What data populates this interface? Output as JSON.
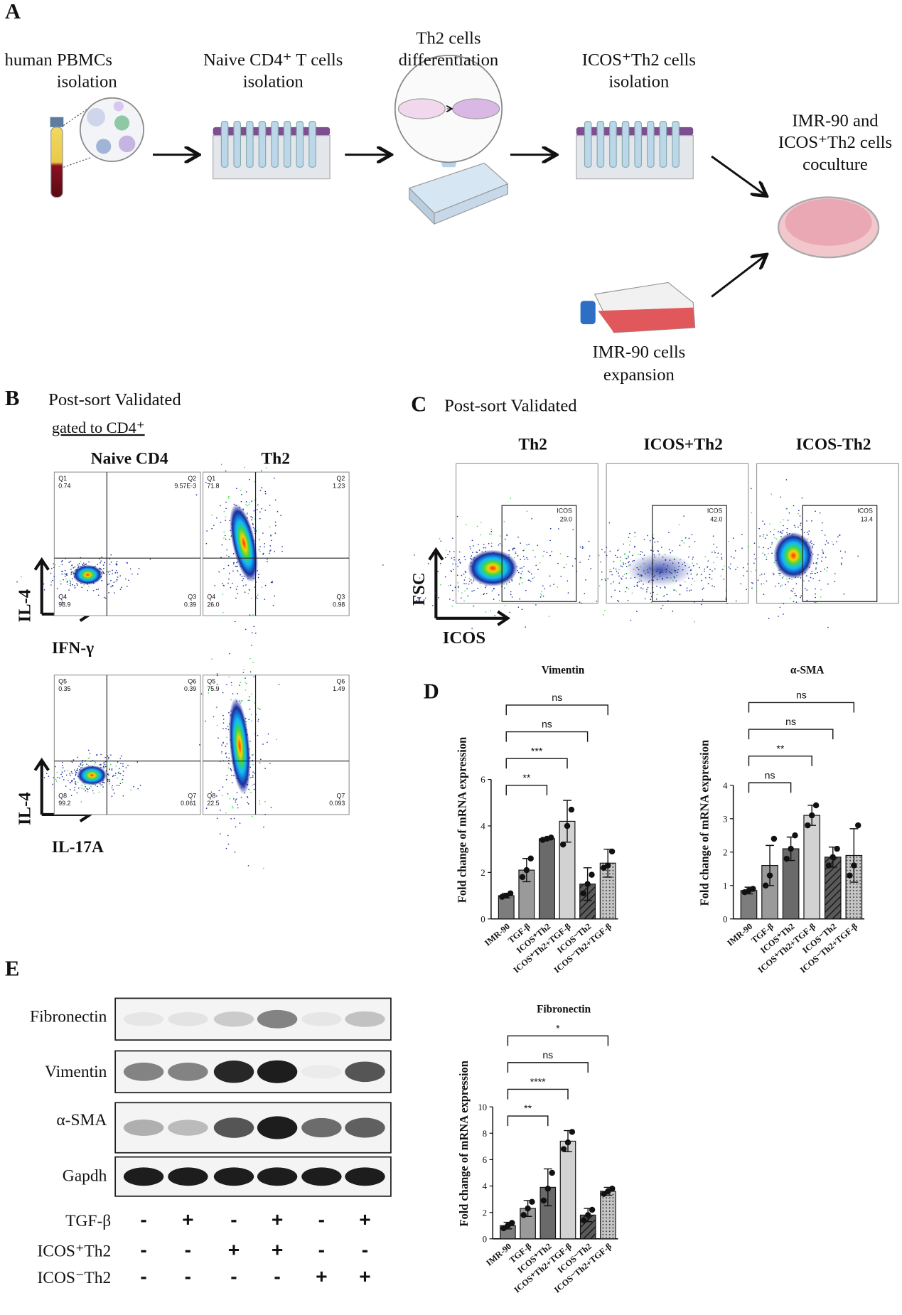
{
  "panel_a": {
    "label": "A",
    "steps": [
      {
        "lines": [
          "human PBMCs",
          "isolation"
        ]
      },
      {
        "lines": [
          "Naive CD4⁺ T cells",
          "isolation"
        ]
      },
      {
        "lines": [
          "Th2 cells",
          "differentiation"
        ]
      },
      {
        "lines": [
          "ICOS⁺Th2 cells",
          "isolation"
        ]
      },
      {
        "lines": [
          "IMR-90 and",
          "ICOS⁺Th2 cells",
          "coculture"
        ]
      },
      {
        "lines": [
          "IMR-90 cells",
          "expansion"
        ]
      }
    ]
  },
  "panel_b": {
    "label": "B",
    "title": "Post-sort Validated",
    "subtitle": "gated to CD4⁺",
    "columns": [
      "Naive CD4",
      "Th2"
    ],
    "rows": [
      {
        "y_label": "IL-4",
        "x_label": "IFN-γ",
        "plots": [
          {
            "quadrants": [
              {
                "name": "Q1",
                "value": "0.74"
              },
              {
                "name": "Q2",
                "value": "9.57E-3"
              },
              {
                "name": "Q4",
                "value": "98.9"
              },
              {
                "name": "Q3",
                "value": "0.39"
              }
            ]
          },
          {
            "quadrants": [
              {
                "name": "Q1",
                "value": "71.8"
              },
              {
                "name": "Q2",
                "value": "1.23"
              },
              {
                "name": "Q4",
                "value": "26.0"
              },
              {
                "name": "Q3",
                "value": "0.98"
              }
            ]
          }
        ]
      },
      {
        "y_label": "IL-4",
        "x_label": "IL-17A",
        "plots": [
          {
            "quadrants": [
              {
                "name": "Q5",
                "value": "0.35"
              },
              {
                "name": "Q6",
                "value": "0.39"
              },
              {
                "name": "Q8",
                "value": "99.2"
              },
              {
                "name": "Q7",
                "value": "0.061"
              }
            ]
          },
          {
            "quadrants": [
              {
                "name": "Q5",
                "value": "75.9"
              },
              {
                "name": "Q6",
                "value": "1.49"
              },
              {
                "name": "Q8",
                "value": "22.5"
              },
              {
                "name": "Q7",
                "value": "0.093"
              }
            ]
          }
        ]
      }
    ]
  },
  "panel_c": {
    "label": "C",
    "title": "Post-sort Validated",
    "y_label": "FSC",
    "x_label": "ICOS",
    "plots": [
      {
        "title": "Th2",
        "gate": "ICOS",
        "value": "29.0"
      },
      {
        "title": "ICOS+Th2",
        "gate": "ICOS",
        "value": "42.0"
      },
      {
        "title": "ICOS-Th2",
        "gate": "ICOS",
        "value": "13.4"
      }
    ]
  },
  "panel_d": {
    "label": "D"
  },
  "chart_data": [
    {
      "type": "bar",
      "title": "Vimentin",
      "y_label": "Fold change of mRNA expression",
      "categories": [
        "IMR-90",
        "TGF-β",
        "ICOS⁺Th2",
        "ICOS⁺Th2+TGF-β",
        "ICOS⁻Th2",
        "ICOS⁻Th2+TGF-β"
      ],
      "values": [
        1.0,
        2.1,
        3.45,
        4.2,
        1.5,
        2.4
      ],
      "errors": [
        0.1,
        0.5,
        0.05,
        0.9,
        0.7,
        0.6
      ],
      "points": [
        [
          0.95,
          1.0,
          1.1
        ],
        [
          1.8,
          2.1,
          2.6
        ],
        [
          3.4,
          3.45,
          3.5
        ],
        [
          3.2,
          4.0,
          4.7
        ],
        [
          1.1,
          1.5,
          1.9
        ],
        [
          2.2,
          2.3,
          2.9
        ]
      ],
      "colors": [
        "#7d7d7d",
        "#9a9a9a",
        "#6a6a6a",
        "#d2d2d2",
        "#5a5a5a",
        "#c4c4c4"
      ],
      "patterns": [
        "solid",
        "solid",
        "solid",
        "solid",
        "hatch",
        "dots"
      ],
      "ylim": [
        0,
        6
      ],
      "yticks": [
        0,
        2,
        4,
        6
      ],
      "comparisons": [
        {
          "between": [
            0,
            2
          ],
          "label": "**"
        },
        {
          "between": [
            0,
            3
          ],
          "label": "***"
        },
        {
          "between": [
            0,
            4
          ],
          "label": "ns"
        },
        {
          "between": [
            0,
            5
          ],
          "label": "ns"
        }
      ]
    },
    {
      "type": "bar",
      "title": "α-SMA",
      "y_label": "Fold change of mRNA expression",
      "categories": [
        "IMR-90",
        "TGF-β",
        "ICOS⁺Th2",
        "ICOS⁺Th2+TGF-β",
        "ICOS⁻Th2",
        "ICOS⁻Th2+TGF-β"
      ],
      "values": [
        0.85,
        1.6,
        2.1,
        3.1,
        1.85,
        1.9
      ],
      "errors": [
        0.1,
        0.6,
        0.35,
        0.3,
        0.3,
        0.8
      ],
      "points": [
        [
          0.8,
          0.85,
          0.9
        ],
        [
          1.0,
          1.3,
          2.4
        ],
        [
          1.8,
          2.1,
          2.5
        ],
        [
          2.8,
          3.1,
          3.4
        ],
        [
          1.6,
          1.85,
          2.1
        ],
        [
          1.3,
          1.6,
          2.8
        ]
      ],
      "colors": [
        "#7d7d7d",
        "#9a9a9a",
        "#6a6a6a",
        "#d2d2d2",
        "#5a5a5a",
        "#c4c4c4"
      ],
      "patterns": [
        "solid",
        "solid",
        "solid",
        "solid",
        "hatch",
        "dots"
      ],
      "ylim": [
        0,
        4
      ],
      "yticks": [
        0,
        1,
        2,
        3,
        4
      ],
      "comparisons": [
        {
          "between": [
            0,
            2
          ],
          "label": "ns"
        },
        {
          "between": [
            0,
            3
          ],
          "label": "**"
        },
        {
          "between": [
            0,
            4
          ],
          "label": "ns"
        },
        {
          "between": [
            0,
            5
          ],
          "label": "ns"
        }
      ]
    },
    {
      "type": "bar",
      "title": "Fibronectin",
      "y_label": "Fold change of mRNA expression",
      "categories": [
        "IMR-90",
        "TGF-β",
        "ICOS⁺Th2",
        "ICOS⁺Th2+TGF-β",
        "ICOS⁻Th2",
        "ICOS⁻Th2+TGF-β"
      ],
      "values": [
        1.0,
        2.3,
        3.9,
        7.4,
        1.8,
        3.6
      ],
      "errors": [
        0.25,
        0.6,
        1.4,
        0.8,
        0.5,
        0.3
      ],
      "points": [
        [
          0.8,
          1.0,
          1.2
        ],
        [
          1.8,
          2.3,
          2.8
        ],
        [
          2.9,
          3.8,
          5.0
        ],
        [
          6.8,
          7.3,
          8.1
        ],
        [
          1.4,
          1.8,
          2.2
        ],
        [
          3.4,
          3.6,
          3.8
        ]
      ],
      "colors": [
        "#7d7d7d",
        "#9a9a9a",
        "#6a6a6a",
        "#d2d2d2",
        "#5a5a5a",
        "#c4c4c4"
      ],
      "patterns": [
        "solid",
        "solid",
        "solid",
        "solid",
        "hatch",
        "dots"
      ],
      "ylim": [
        0,
        10
      ],
      "yticks": [
        0,
        2,
        4,
        6,
        8,
        10
      ],
      "comparisons": [
        {
          "between": [
            0,
            2
          ],
          "label": "**"
        },
        {
          "between": [
            0,
            3
          ],
          "label": "****"
        },
        {
          "between": [
            0,
            4
          ],
          "label": "ns"
        },
        {
          "between": [
            0,
            5
          ],
          "label": "*"
        }
      ]
    }
  ],
  "panel_e": {
    "label": "E",
    "proteins": [
      "Fibronectin",
      "Vimentin",
      "α-SMA",
      "Gapdh"
    ],
    "treatments": [
      {
        "name": "TGF-β",
        "signs": [
          "-",
          "+",
          "-",
          "+",
          "-",
          "+"
        ]
      },
      {
        "name": "ICOS⁺Th2",
        "signs": [
          "-",
          "-",
          "+",
          "+",
          "-",
          "-"
        ]
      },
      {
        "name": "ICOS⁻Th2",
        "signs": [
          "-",
          "-",
          "-",
          "-",
          "+",
          "+"
        ]
      }
    ]
  }
}
